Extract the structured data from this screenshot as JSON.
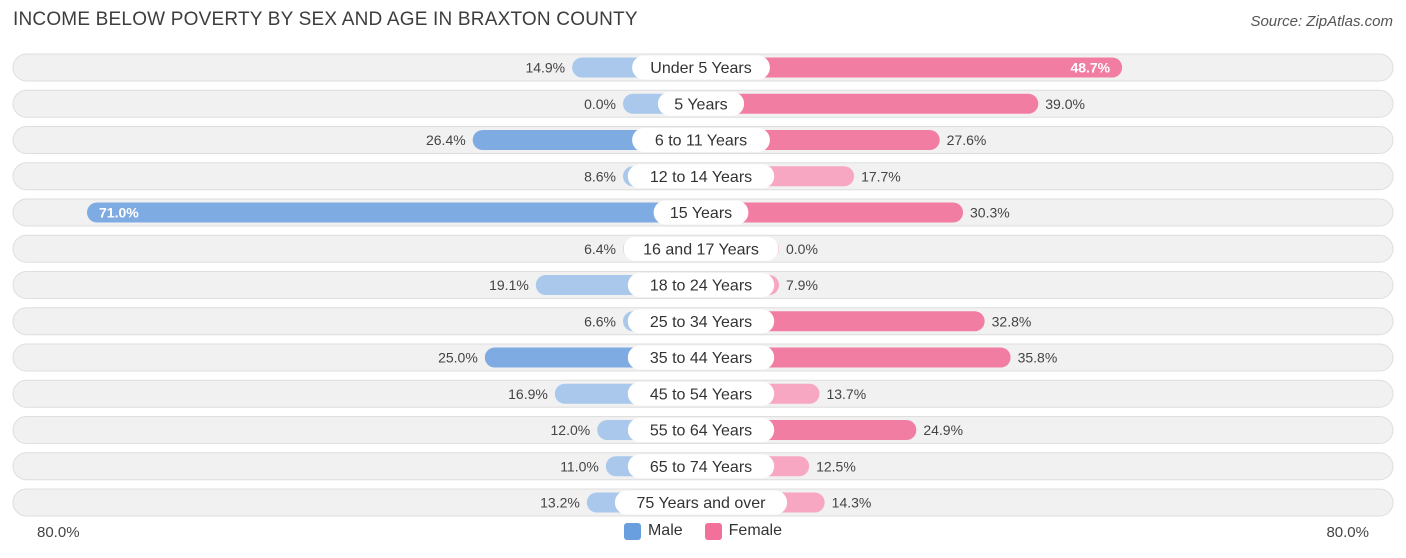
{
  "header": {
    "title": "INCOME BELOW POVERTY BY SEX AND AGE IN BRAXTON COUNTY",
    "source": "Source: ZipAtlas.com"
  },
  "colors": {
    "male_dark": "#6a9fdf",
    "male_light": "#a9c8ec",
    "female_dark": "#f2709a",
    "female_light": "#f7a7c2",
    "row_bg": "#f1f1f1",
    "row_border": "#dedede"
  },
  "legend": {
    "male": "Male",
    "female": "Female"
  },
  "axis": {
    "left_label": "80.0%",
    "right_label": "80.0%"
  },
  "chart_data": {
    "type": "bar",
    "orientation": "horizontal-diverging",
    "title": "INCOME BELOW POVERTY BY SEX AND AGE IN BRAXTON COUNTY",
    "xlim": [
      -80,
      80
    ],
    "categories": [
      "Under 5 Years",
      "5 Years",
      "6 to 11 Years",
      "12 to 14 Years",
      "15 Years",
      "16 and 17 Years",
      "18 to 24 Years",
      "25 to 34 Years",
      "35 to 44 Years",
      "45 to 54 Years",
      "55 to 64 Years",
      "65 to 74 Years",
      "75 Years and over"
    ],
    "series": [
      {
        "name": "Male",
        "values": [
          14.9,
          0.0,
          26.4,
          8.6,
          71.0,
          6.4,
          19.1,
          6.6,
          25.0,
          16.9,
          12.0,
          11.0,
          13.2
        ],
        "labels": [
          "14.9%",
          "0.0%",
          "26.4%",
          "8.6%",
          "71.0%",
          "6.4%",
          "19.1%",
          "6.6%",
          "25.0%",
          "16.9%",
          "12.0%",
          "11.0%",
          "13.2%"
        ]
      },
      {
        "name": "Female",
        "values": [
          48.7,
          39.0,
          27.6,
          17.7,
          30.3,
          0.0,
          7.9,
          32.8,
          35.8,
          13.7,
          24.9,
          12.5,
          14.3
        ],
        "labels": [
          "48.7%",
          "39.0%",
          "27.6%",
          "17.7%",
          "30.3%",
          "0.0%",
          "7.9%",
          "32.8%",
          "35.8%",
          "13.7%",
          "24.9%",
          "12.5%",
          "14.3%"
        ]
      }
    ]
  }
}
